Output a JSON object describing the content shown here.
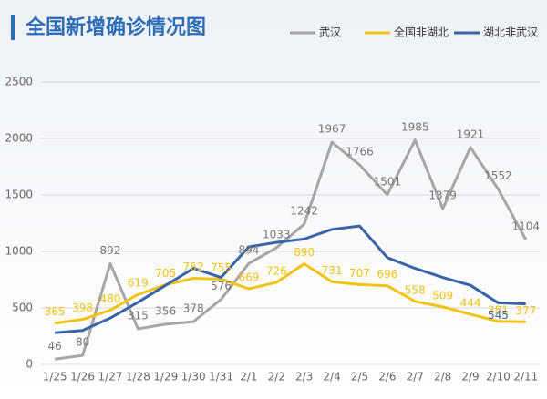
{
  "chart_data": {
    "type": "line",
    "title": "全国新增确诊情况图",
    "categories": [
      "1/25",
      "1/26",
      "1/27",
      "1/28",
      "1/29",
      "1/30",
      "1/31",
      "2/1",
      "2/2",
      "2/3",
      "2/4",
      "2/5",
      "2/6",
      "2/7",
      "2/8",
      "2/9",
      "2/10",
      "2/11"
    ],
    "series": [
      {
        "name": "武汉",
        "color": "#a6a6a6",
        "values": [
          46,
          80,
          892,
          315,
          356,
          378,
          576,
          894,
          1033,
          1242,
          1967,
          1766,
          1501,
          1985,
          1379,
          1921,
          1552,
          1104
        ]
      },
      {
        "name": "全国非湖北",
        "color": "#f2c314",
        "values": [
          365,
          398,
          480,
          619,
          705,
          762,
          755,
          669,
          726,
          890,
          731,
          707,
          696,
          558,
          509,
          444,
          381,
          377
        ]
      },
      {
        "name": "湖北非武汉",
        "color": "#3b64a8",
        "values": [
          280,
          300,
          410,
          550,
          700,
          850,
          770,
          1040,
          1080,
          1110,
          1195,
          1225,
          945,
          850,
          770,
          700,
          545,
          535
        ],
        "value_labels": [
          null,
          null,
          null,
          null,
          null,
          null,
          null,
          null,
          null,
          null,
          null,
          null,
          null,
          null,
          null,
          null,
          "545",
          null
        ]
      }
    ],
    "ylim": [
      0,
      2500
    ],
    "yticks": [
      0,
      500,
      1000,
      1500,
      2000,
      2500
    ],
    "grid": true
  }
}
